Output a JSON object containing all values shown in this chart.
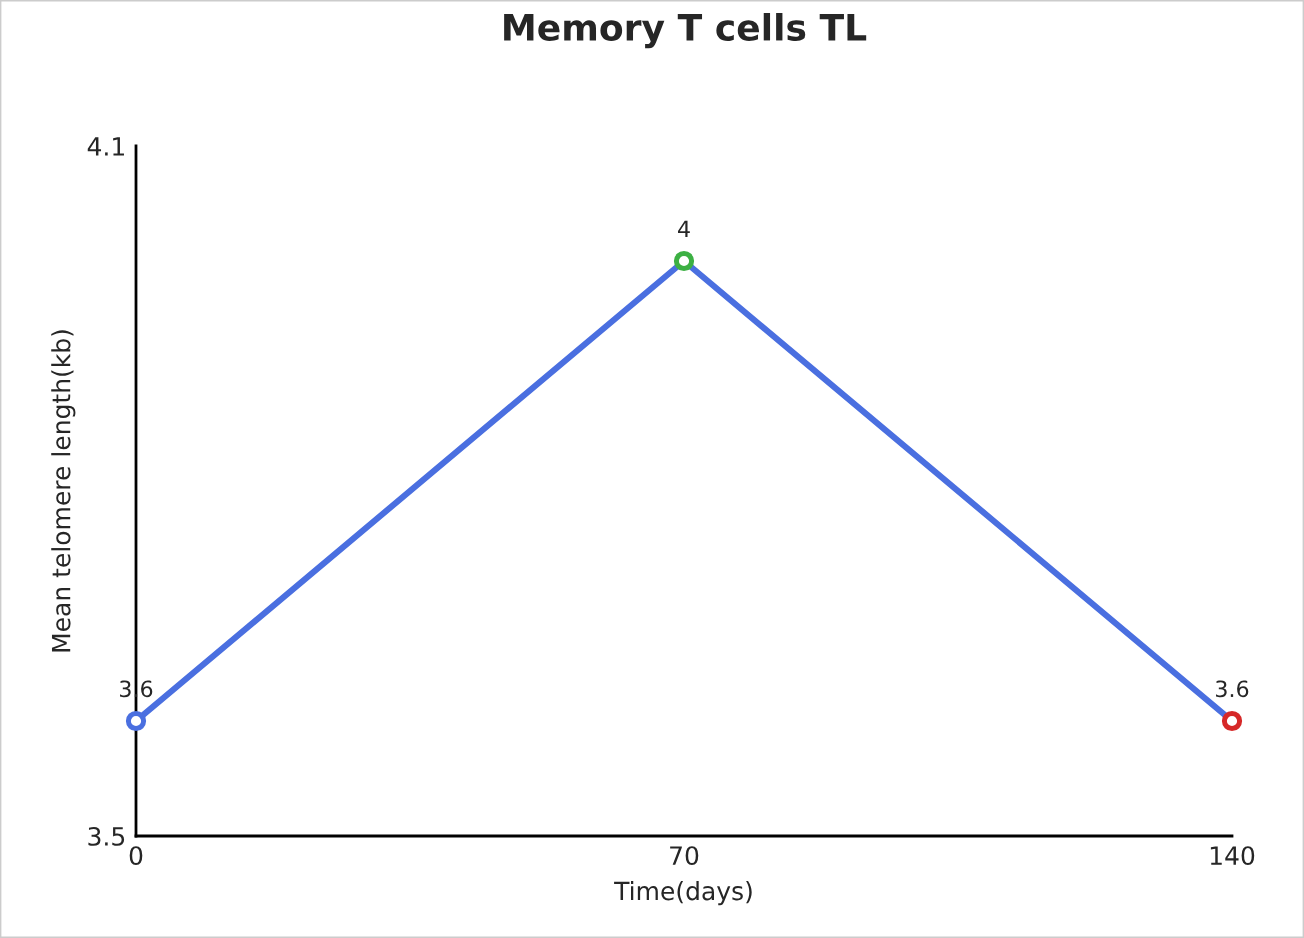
{
  "chart_data": {
    "type": "line",
    "title": "Memory T cells TL",
    "xlabel": "Time(days)",
    "ylabel": "Mean telomere length(kb)",
    "x": [
      0,
      70,
      140
    ],
    "series": [
      {
        "color": "#4a6fe0",
        "colors": [
          "#4a6fe0",
          "#3cb043",
          "#d62828"
        ],
        "values": [
          3.6,
          4,
          3.6
        ]
      }
    ],
    "xlim": [
      0,
      140
    ],
    "xticks": [
      0,
      70,
      140
    ],
    "ylim": [
      3.5,
      4.1
    ],
    "yticks": [
      3.5,
      4.1
    ],
    "data_labels": true,
    "grid": false,
    "legend": false,
    "marker": "circle",
    "line_style": "solid"
  }
}
